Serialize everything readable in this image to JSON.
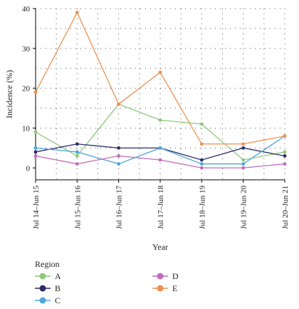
{
  "chart_data": {
    "type": "line",
    "categories": [
      "Jul 14–Jun 15",
      "Jul 15–Jun 16",
      "Jul 16–Jun 17",
      "Jul 17–Jun 18",
      "Jul 18–Jun 19",
      "Jul 19–Jun 20",
      "Jul 20–Jun 21"
    ],
    "xlabel": "Year",
    "ylabel": "Incidence (%)",
    "ylim": [
      -3,
      40
    ],
    "yticks": [
      0,
      10,
      20,
      30,
      40
    ],
    "grid": "dotted",
    "legend_title": "Region",
    "legend_position": "bottom-left",
    "series": [
      {
        "name": "A",
        "color": "#8cc97a",
        "values": [
          9,
          3,
          16,
          12,
          11,
          2,
          4
        ]
      },
      {
        "name": "B",
        "color": "#2b2d6b",
        "values": [
          4,
          6,
          5,
          5,
          2,
          5,
          3
        ]
      },
      {
        "name": "C",
        "color": "#4fa6d8",
        "values": [
          5,
          4,
          1,
          5,
          1,
          1,
          8
        ]
      },
      {
        "name": "D",
        "color": "#c06cb8",
        "values": [
          3,
          1,
          3,
          2,
          0,
          0,
          1
        ]
      },
      {
        "name": "E",
        "color": "#ec9150",
        "values": [
          19,
          39,
          16,
          24,
          6,
          6,
          8
        ]
      }
    ]
  }
}
